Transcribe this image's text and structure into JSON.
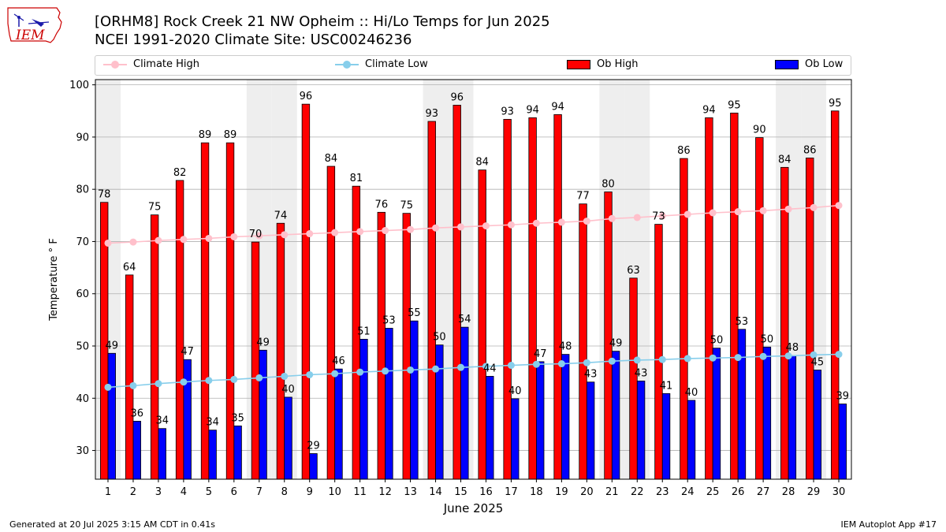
{
  "header": {
    "title_line1": "[ORHM8] Rock Creek 21 NW Opheim :: Hi/Lo Temps for Jun 2025",
    "title_line2": "NCEI 1991-2020 Climate Site: USC00246236",
    "logo_text": "IEM"
  },
  "footer": {
    "generated": "Generated at 20 Jul 2025 3:15 AM CDT in 0.41s",
    "app": "IEM Autoplot App #17"
  },
  "legend": {
    "climate_high": "Climate High",
    "climate_low": "Climate Low",
    "ob_high": "Ob High",
    "ob_low": "Ob Low"
  },
  "colors": {
    "ob_high": "#ff0000",
    "ob_low": "#0000ff",
    "climate_high": "#ffc0cb",
    "climate_low": "#87ceeb",
    "weekend_band": "#eeeeee",
    "grid": "#b0b0b0"
  },
  "chart_data": {
    "type": "bar",
    "xlabel": "June 2025",
    "ylabel": "Temperature ° F",
    "ylim": [
      24.5,
      101
    ],
    "yticks": [
      30,
      40,
      50,
      60,
      70,
      80,
      90,
      100
    ],
    "grid": "horizontal",
    "legend_placement": "top",
    "categories": [
      "1",
      "2",
      "3",
      "4",
      "5",
      "6",
      "7",
      "8",
      "9",
      "10",
      "11",
      "12",
      "13",
      "14",
      "15",
      "16",
      "17",
      "18",
      "19",
      "20",
      "21",
      "22",
      "23",
      "24",
      "25",
      "26",
      "27",
      "28",
      "29",
      "30"
    ],
    "shaded_days": [
      "1",
      "7",
      "8",
      "14",
      "15",
      "21",
      "22",
      "28",
      "29"
    ],
    "series": [
      {
        "name": "Ob High",
        "kind": "bar",
        "values": [
          77.5,
          63.6,
          75.1,
          81.7,
          88.9,
          88.9,
          69.9,
          73.5,
          96.3,
          84.4,
          80.6,
          75.6,
          75.4,
          93.0,
          96.1,
          83.7,
          93.4,
          93.7,
          94.3,
          77.2,
          79.5,
          63.0,
          73.3,
          85.9,
          93.7,
          94.6,
          89.9,
          84.2,
          86.0,
          95.0
        ],
        "labels": [
          "78",
          "64",
          "75",
          "82",
          "89",
          "89",
          "70",
          "74",
          "96",
          "84",
          "81",
          "76",
          "75",
          "93",
          "96",
          "84",
          "93",
          "94",
          "94",
          "77",
          "80",
          "63",
          "73",
          "86",
          "94",
          "95",
          "90",
          "84",
          "86",
          "95"
        ]
      },
      {
        "name": "Ob Low",
        "kind": "bar",
        "values": [
          48.6,
          35.6,
          34.2,
          47.4,
          33.9,
          34.7,
          49.2,
          40.2,
          29.4,
          45.6,
          51.3,
          53.4,
          54.8,
          50.2,
          53.6,
          44.2,
          39.9,
          47.0,
          48.4,
          43.1,
          49.0,
          43.3,
          40.9,
          39.6,
          49.6,
          53.2,
          49.8,
          48.2,
          45.4,
          38.9
        ],
        "labels": [
          "49",
          "36",
          "34",
          "47",
          "34",
          "35",
          "49",
          "40",
          "29",
          "46",
          "51",
          "53",
          "55",
          "50",
          "54",
          "44",
          "40",
          "47",
          "48",
          "43",
          "49",
          "43",
          "41",
          "40",
          "50",
          "53",
          "50",
          "48",
          "45",
          "39"
        ]
      },
      {
        "name": "Climate High",
        "kind": "line",
        "values": [
          69.7,
          69.9,
          70.2,
          70.4,
          70.6,
          70.9,
          71.1,
          71.3,
          71.5,
          71.7,
          71.9,
          72.1,
          72.3,
          72.6,
          72.8,
          73.0,
          73.2,
          73.5,
          73.7,
          73.9,
          74.4,
          74.6,
          74.9,
          75.2,
          75.5,
          75.7,
          75.9,
          76.2,
          76.5,
          76.9
        ]
      },
      {
        "name": "Climate Low",
        "kind": "line",
        "values": [
          42.1,
          42.4,
          42.8,
          43.1,
          43.4,
          43.6,
          43.9,
          44.2,
          44.5,
          44.7,
          45.0,
          45.2,
          45.4,
          45.6,
          45.9,
          46.1,
          46.3,
          46.5,
          46.6,
          46.8,
          47.1,
          47.3,
          47.4,
          47.6,
          47.7,
          47.8,
          48.0,
          48.1,
          48.3,
          48.4
        ]
      }
    ]
  }
}
